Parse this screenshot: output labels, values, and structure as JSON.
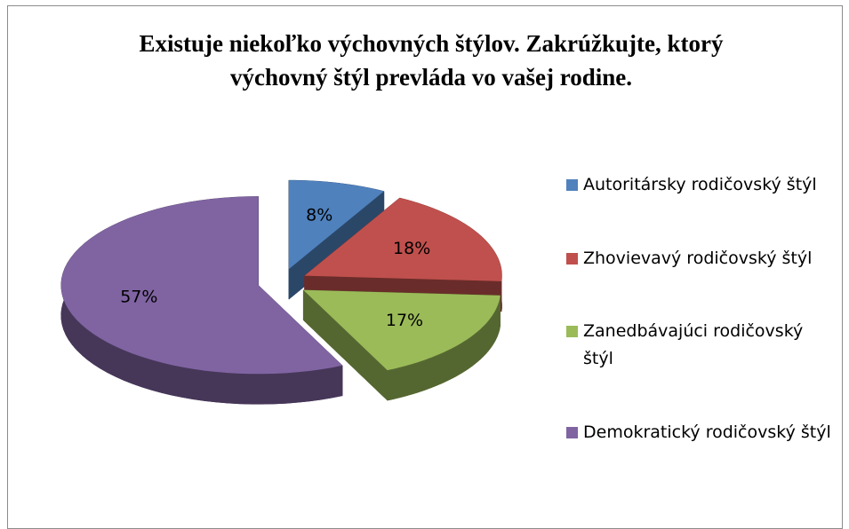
{
  "chart_data": {
    "type": "pie",
    "title": "Existuje niekoľko výchovných štýlov. Zakrúžkujte, ktorý výchovný štýl prevláda vo vašej rodine.",
    "categories": [
      "Autoritársky rodičovský štýl",
      "Zhovievavý rodičovský štýl",
      "Zanedbávajúci rodičovský štýl",
      "Demokratický rodičovský štýl"
    ],
    "values": [
      8,
      18,
      17,
      57
    ],
    "value_labels": [
      "8%",
      "18%",
      "17%",
      "57%"
    ],
    "colors": [
      "#4f81bd",
      "#c0504d",
      "#9bbb59",
      "#8064a2"
    ],
    "legend": "right"
  }
}
